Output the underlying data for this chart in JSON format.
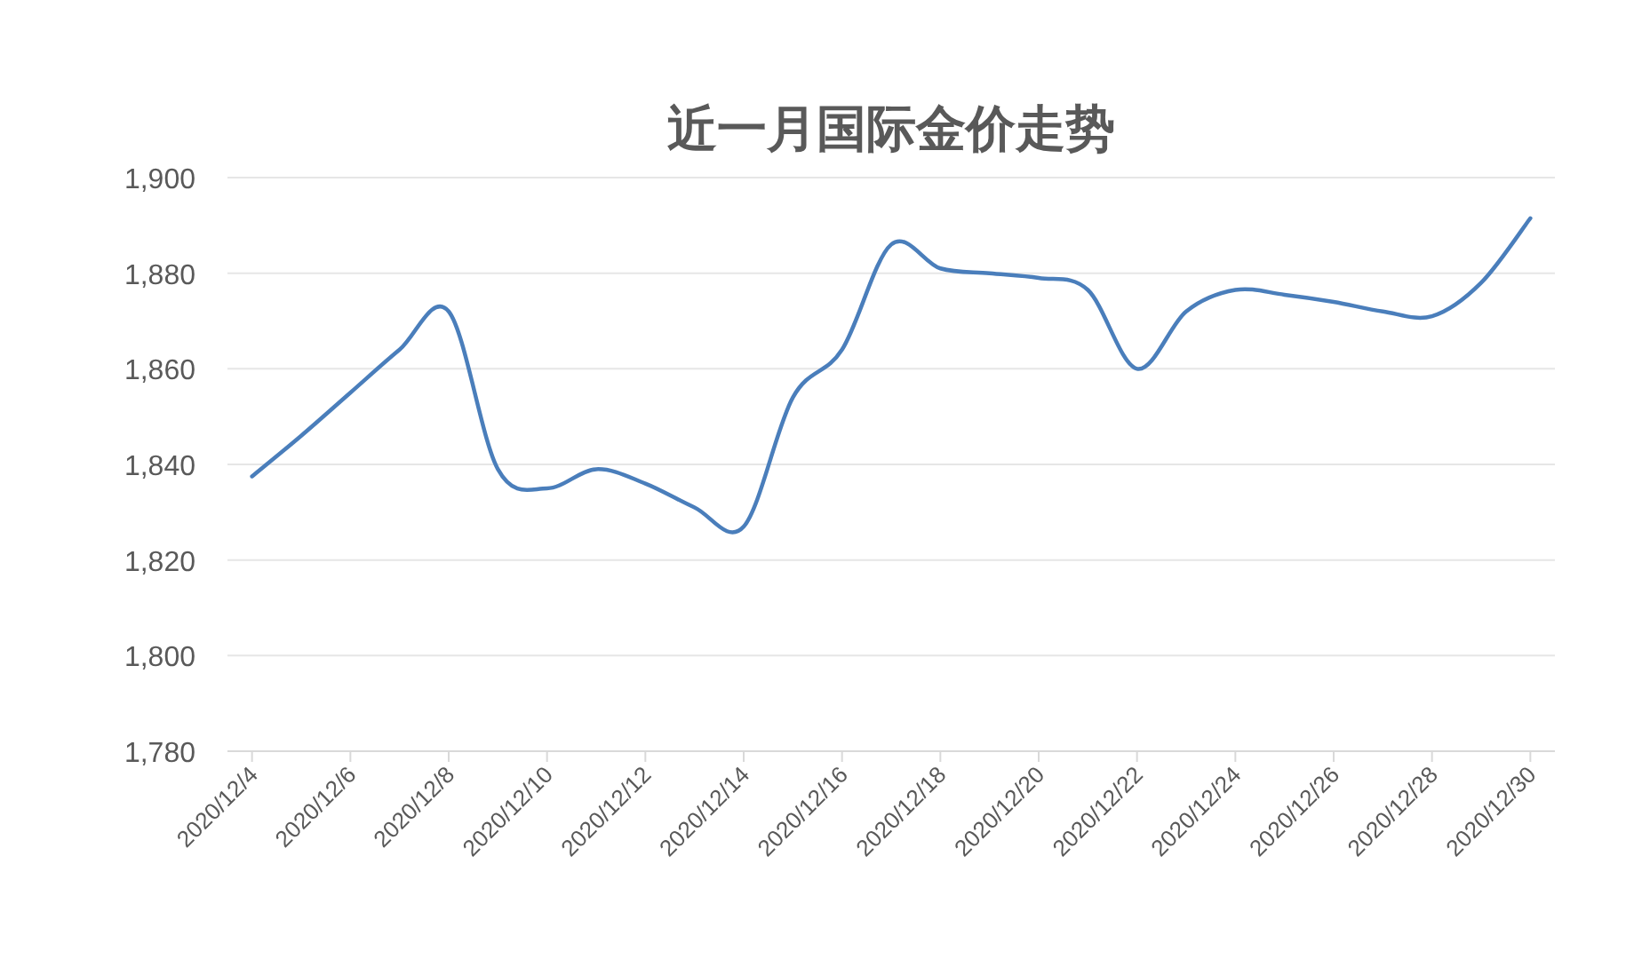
{
  "chart_data": {
    "type": "line",
    "title": "近一月国际金价走势",
    "categories": [
      "2020/12/4",
      null,
      "2020/12/6",
      null,
      "2020/12/8",
      null,
      "2020/12/10",
      null,
      "2020/12/12",
      null,
      "2020/12/14",
      null,
      "2020/12/16",
      null,
      "2020/12/18",
      null,
      "2020/12/20",
      null,
      "2020/12/22",
      null,
      "2020/12/24",
      null,
      "2020/12/26",
      null,
      "2020/12/28",
      null,
      "2020/12/30"
    ],
    "series": [
      {
        "color": "#4a7ebb",
        "values": [
          1837.5,
          1846,
          1855,
          1864,
          1872,
          1839,
          1835,
          1839,
          1836,
          1831,
          1827,
          1854,
          1864,
          1886,
          1881,
          1880,
          1879,
          1876.5,
          1860,
          1872,
          1876.5,
          1875.5,
          1874,
          1872,
          1871,
          1878,
          1891.5
        ]
      }
    ],
    "ylim": [
      1780,
      1900
    ],
    "yticks": [
      {
        "value": 1780,
        "label": "1,780"
      },
      {
        "value": 1800,
        "label": "1,800"
      },
      {
        "value": 1820,
        "label": "1,820"
      },
      {
        "value": 1840,
        "label": "1,840"
      },
      {
        "value": 1860,
        "label": "1,860"
      },
      {
        "value": 1880,
        "label": "1,880"
      },
      {
        "value": 1900,
        "label": "1,900"
      }
    ],
    "grid": "y",
    "line_style": "solid",
    "marker": "none"
  }
}
